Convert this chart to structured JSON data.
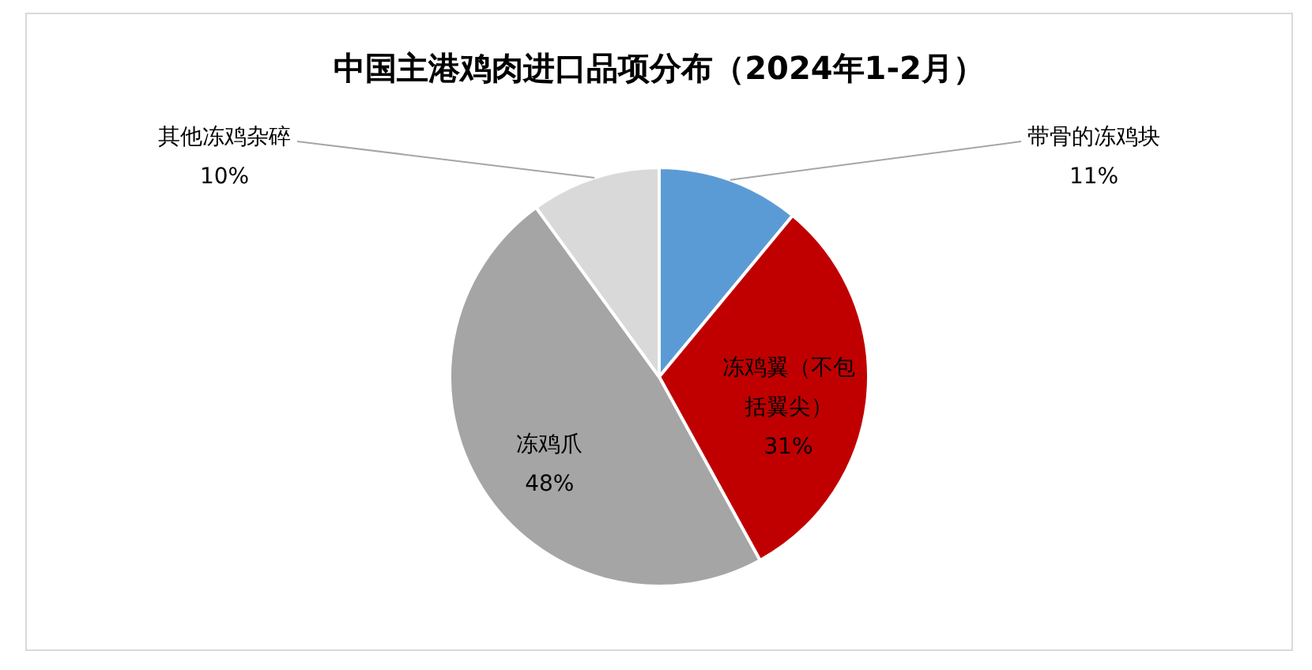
{
  "chart_data": {
    "type": "pie",
    "title": "中国主港鸡肉进口品项分布（2024年1-2月）",
    "categories": [
      "带骨的冻鸡块",
      "冻鸡翼（不包括翼尖）",
      "冻鸡爪",
      "其他冻鸡杂碎"
    ],
    "values": [
      11,
      31,
      48,
      10
    ],
    "colors": [
      "#5b9bd5",
      "#c00000",
      "#a5a5a5",
      "#d9d9d9"
    ],
    "value_labels": [
      "11%",
      "31%",
      "48%",
      "10%"
    ],
    "legend": false
  }
}
